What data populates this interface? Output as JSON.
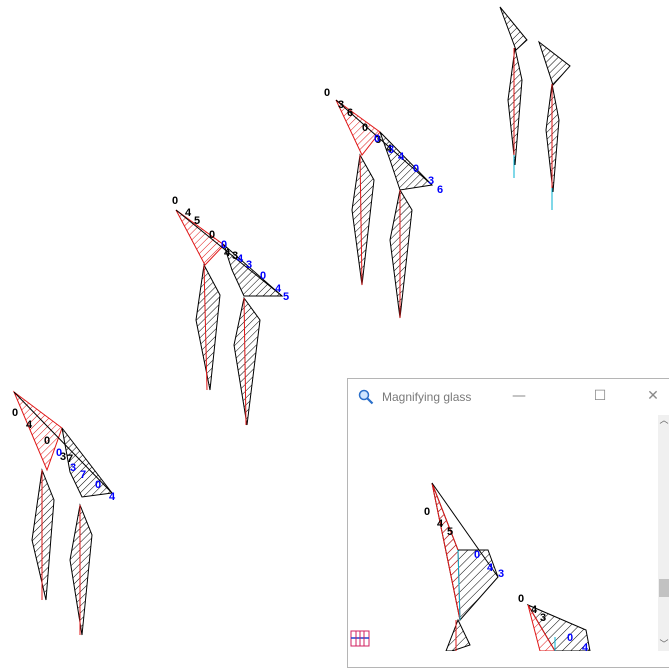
{
  "colors": {
    "hatch_red": "#e01818",
    "hatch_black": "#000000",
    "axis_blue": "#00b0d0",
    "label_black": "#000000",
    "label_blue": "#0000ff"
  },
  "figures": [
    {
      "black_labels": [
        "0",
        "4",
        "0",
        "3",
        "7"
      ],
      "blue_labels": [
        "0",
        "3",
        "7",
        "0",
        "4"
      ]
    },
    {
      "black_labels": [
        "0",
        "4",
        "5",
        "0",
        "4",
        "3"
      ],
      "blue_labels": [
        "0",
        "4",
        "3",
        "0",
        "4",
        "5"
      ]
    },
    {
      "black_labels": [
        "0",
        "3",
        "6",
        "0",
        "3",
        "4"
      ],
      "blue_labels": [
        "0",
        "3",
        "4",
        "0",
        "3",
        "6"
      ]
    }
  ],
  "magnifier": {
    "title": "Magnifying glass",
    "icon": "magnifier-icon",
    "minimize_glyph": "—",
    "maximize_glyph": "☐",
    "close_glyph": "✕",
    "scroll_up_glyph": "︿",
    "scroll_down_glyph": "﹀",
    "zoom_view": {
      "black_labels": [
        "0",
        "4",
        "5",
        "0",
        "4",
        "3"
      ],
      "blue_labels": [
        "0",
        "4",
        "3",
        "0",
        "4",
        "5"
      ]
    },
    "corner_icon": "scale-grid-icon"
  }
}
